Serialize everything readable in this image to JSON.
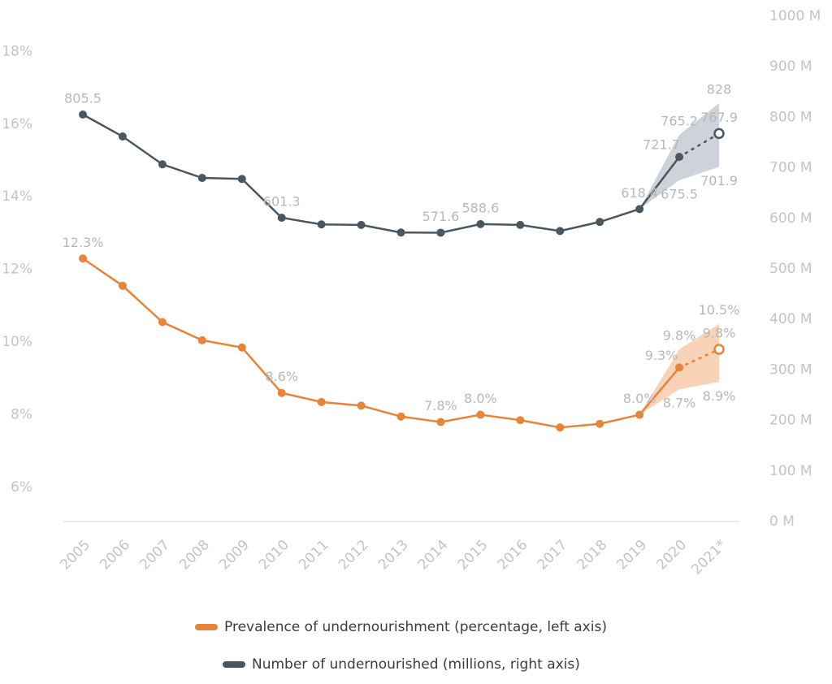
{
  "chart_data": {
    "type": "line",
    "categories": [
      "2005",
      "2006",
      "2007",
      "2008",
      "2009",
      "2010",
      "2011",
      "2012",
      "2013",
      "2014",
      "2015",
      "2016",
      "2017",
      "2018",
      "2019",
      "2020",
      "2021*"
    ],
    "projected": [
      "2021*"
    ],
    "ylim": [
      5.06,
      18.97
    ],
    "yticks": [
      {
        "value": 6,
        "label": "6%"
      },
      {
        "value": 8,
        "label": "8%"
      },
      {
        "value": 10,
        "label": "10%"
      },
      {
        "value": 12,
        "label": "12%"
      },
      {
        "value": 14,
        "label": "14%"
      },
      {
        "value": 16,
        "label": "16%"
      },
      {
        "value": 18,
        "label": "18%"
      }
    ],
    "y2lim": [
      0,
      1000
    ],
    "y2ticks": [
      {
        "value": 0,
        "label": "0 M"
      },
      {
        "value": 100,
        "label": "100 M"
      },
      {
        "value": 200,
        "label": "200 M"
      },
      {
        "value": 300,
        "label": "300 M"
      },
      {
        "value": 400,
        "label": "400 M"
      },
      {
        "value": 500,
        "label": "500 M"
      },
      {
        "value": 600,
        "label": "600 M"
      },
      {
        "value": 700,
        "label": "700 M"
      },
      {
        "value": 800,
        "label": "800 M"
      },
      {
        "value": 900,
        "label": "900 M"
      },
      {
        "value": 1000,
        "label": "1000 M"
      }
    ],
    "grid": false,
    "legend": "bottom",
    "series": [
      {
        "name": "Prevalence of undernourishment (percentage, left axis)",
        "color": "#e8843a",
        "band_color": "#f7c4a0",
        "values": [
          12.3,
          11.55,
          10.55,
          10.05,
          9.85,
          8.6,
          8.35,
          8.25,
          7.95,
          7.8,
          8.0,
          7.85,
          7.65,
          7.75,
          8.0,
          9.3,
          9.8
        ],
        "value_labels": [
          "12.3%",
          null,
          null,
          null,
          null,
          "8.6%",
          null,
          null,
          null,
          "7.8%",
          "8.0%",
          null,
          null,
          null,
          "8.0%",
          "9.3%",
          "9.8%"
        ],
        "band_high": [
          null,
          null,
          null,
          null,
          null,
          null,
          null,
          null,
          null,
          null,
          null,
          null,
          null,
          null,
          8.0,
          9.8,
          10.5
        ],
        "band_high_labels": [
          null,
          null,
          null,
          null,
          null,
          null,
          null,
          null,
          null,
          null,
          null,
          null,
          null,
          null,
          null,
          "9.8%",
          "10.5%"
        ],
        "band_low": [
          null,
          null,
          null,
          null,
          null,
          null,
          null,
          null,
          null,
          null,
          null,
          null,
          null,
          null,
          8.0,
          8.7,
          8.9
        ],
        "band_low_labels": [
          null,
          null,
          null,
          null,
          null,
          null,
          null,
          null,
          null,
          null,
          null,
          null,
          null,
          null,
          null,
          "8.7%",
          "8.9%"
        ]
      },
      {
        "name": "Number of undernourished (millions, right axis)",
        "color": "#4a5660",
        "band_color": "#bcc4cc",
        "axis": "y2",
        "values": [
          805.5,
          762,
          707,
          680,
          678,
          601.3,
          588,
          587,
          572,
          571.6,
          588.6,
          587,
          575,
          593,
          618.4,
          721.7,
          767.9
        ],
        "value_labels": [
          "805.5",
          null,
          null,
          null,
          null,
          "601.3",
          null,
          null,
          null,
          "571.6",
          "588.6",
          null,
          null,
          null,
          "618.4",
          "721.7",
          "767.9"
        ],
        "band_high": [
          null,
          null,
          null,
          null,
          null,
          null,
          null,
          null,
          null,
          null,
          null,
          null,
          null,
          null,
          618.4,
          765.2,
          828
        ],
        "band_high_labels": [
          null,
          null,
          null,
          null,
          null,
          null,
          null,
          null,
          null,
          null,
          null,
          null,
          null,
          null,
          null,
          "765.2",
          "828"
        ],
        "band_low": [
          null,
          null,
          null,
          null,
          null,
          null,
          null,
          null,
          null,
          null,
          null,
          null,
          null,
          null,
          618.4,
          675.5,
          701.9
        ],
        "band_low_labels": [
          null,
          null,
          null,
          null,
          null,
          null,
          null,
          null,
          null,
          null,
          null,
          null,
          null,
          null,
          null,
          "675.5",
          "701.9"
        ]
      }
    ]
  }
}
